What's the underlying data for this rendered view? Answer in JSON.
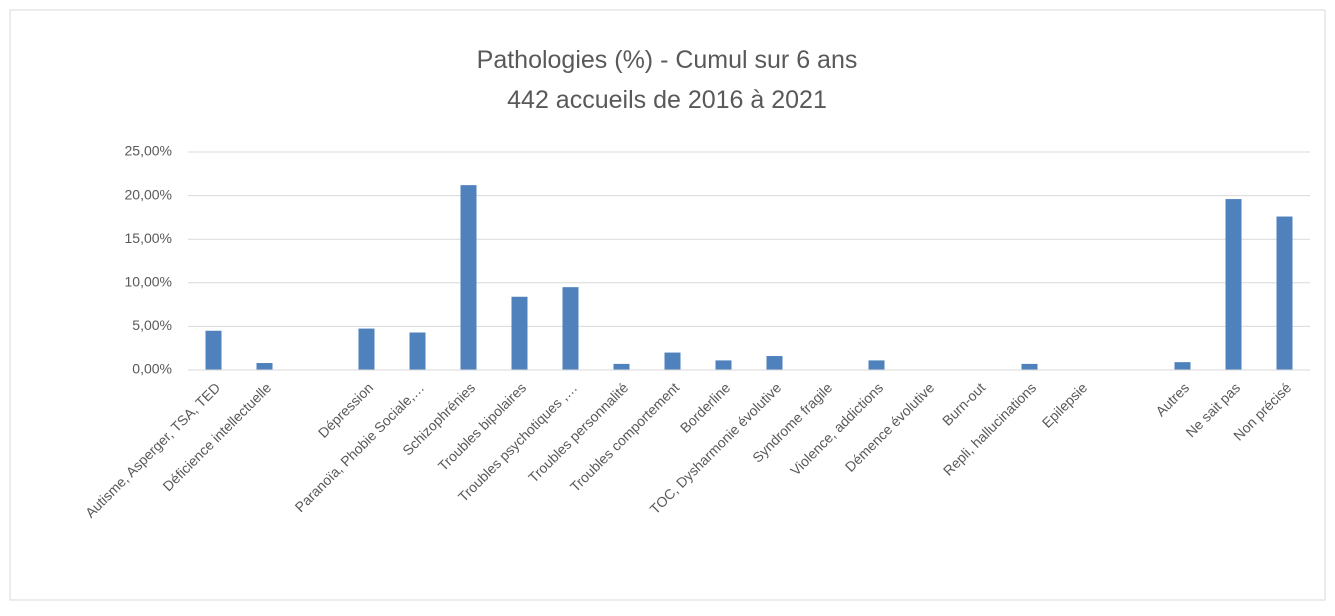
{
  "chart_data": {
    "type": "bar",
    "title": "Pathologies (%) - Cumul sur 6 ans",
    "subtitle": "442 accueils de 2016 à 2021",
    "categories": [
      "Autisme, Asperger, TSA, TED",
      "Déficience intellectuelle",
      null,
      "Dépression",
      "Paranoïa, Phobie Sociale,…",
      "Schizophrénies",
      "Troubles bipolaires",
      "Troubles psychotiques ,…",
      "Troubles personnalité",
      "Troubles comportement",
      "Borderline",
      "TOC, Dysharmonie évolutive",
      "Syndrome fragile",
      "Violence, addictions",
      "Démence évolutive",
      "Burn-out",
      "Repli, hallucinations",
      "Epilepsie",
      null,
      "Autres",
      "Ne sait pas",
      "Non précisé"
    ],
    "values": [
      4.5,
      0.8,
      0,
      4.75,
      4.3,
      21.2,
      8.4,
      9.5,
      0.7,
      2.0,
      1.1,
      1.6,
      0,
      1.1,
      0,
      0,
      0.7,
      0,
      0,
      0.9,
      19.6,
      17.6
    ],
    "color": "#4f81bd",
    "ylim": [
      0,
      25
    ],
    "yticks": [
      {
        "value": 0,
        "label": "0,00%"
      },
      {
        "value": 5,
        "label": "5,00%"
      },
      {
        "value": 10,
        "label": "10,00%"
      },
      {
        "value": 15,
        "label": "15,00%"
      },
      {
        "value": 20,
        "label": "20,00%"
      },
      {
        "value": 25,
        "label": "25,00%"
      }
    ],
    "grid": true
  }
}
